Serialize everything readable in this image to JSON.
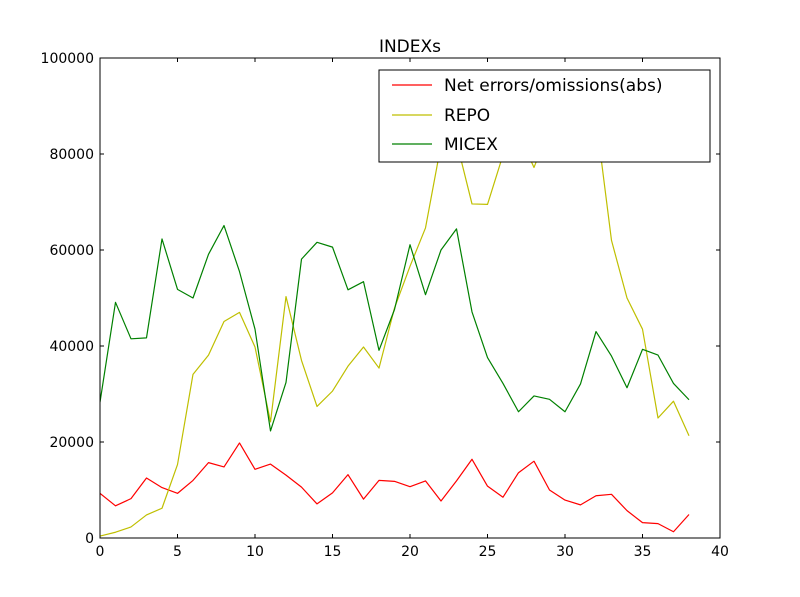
{
  "chart_data": {
    "type": "line",
    "title": "INDEXs",
    "xlabel": "",
    "ylabel": "",
    "xlim": [
      0,
      40
    ],
    "ylim": [
      0,
      100000
    ],
    "x_ticks": [
      "0",
      "5",
      "10",
      "15",
      "20",
      "25",
      "30",
      "35",
      "40"
    ],
    "y_ticks": [
      "0",
      "20000",
      "40000",
      "60000",
      "80000",
      "100000"
    ],
    "grid": false,
    "legend_position": "top-right",
    "x": [
      0,
      1,
      2,
      3,
      4,
      5,
      6,
      7,
      8,
      9,
      10,
      11,
      12,
      13,
      14,
      15,
      16,
      17,
      18,
      19,
      20,
      21,
      22,
      23,
      24,
      25,
      26,
      27,
      28,
      29,
      30,
      31,
      32,
      33,
      34,
      35,
      36,
      37,
      38
    ],
    "series": [
      {
        "name": "Net errors/omissions(abs)",
        "color": "#ff0000",
        "values": [
          9300,
          6700,
          8200,
          12500,
          10500,
          9300,
          12000,
          15700,
          14800,
          19800,
          14300,
          15400,
          13100,
          10600,
          7100,
          9400,
          13200,
          8100,
          12000,
          11800,
          10700,
          11900,
          7700,
          11900,
          16400,
          10800,
          8500,
          13600,
          16000,
          10000,
          7900,
          6900,
          8800,
          9100,
          5700,
          3200,
          3000,
          1300,
          4900
        ]
      },
      {
        "name": "REPO",
        "color": "#bfbf00",
        "values": [
          400,
          1200,
          2300,
          4800,
          6200,
          15300,
          34100,
          38100,
          45100,
          47000,
          39800,
          24200,
          50300,
          37000,
          27400,
          30600,
          35800,
          39800,
          35400,
          47900,
          56600,
          64600,
          81900,
          82600,
          69600,
          69500,
          79800,
          84300,
          77200,
          85400,
          86800,
          87000,
          87500,
          62000,
          50000,
          43500,
          25000,
          28500,
          21300
        ]
      },
      {
        "name": "MICEX",
        "color": "#008000",
        "values": [
          28300,
          49100,
          41500,
          41700,
          62300,
          51800,
          50000,
          59100,
          65100,
          55500,
          43500,
          22300,
          32400,
          58100,
          61600,
          60600,
          51700,
          53400,
          39100,
          47600,
          61100,
          50700,
          60000,
          64400,
          47100,
          37600,
          32200,
          26300,
          29600,
          28900,
          26300,
          32100,
          43000,
          37900,
          31300,
          39300,
          38100,
          32200,
          28800
        ]
      }
    ]
  }
}
